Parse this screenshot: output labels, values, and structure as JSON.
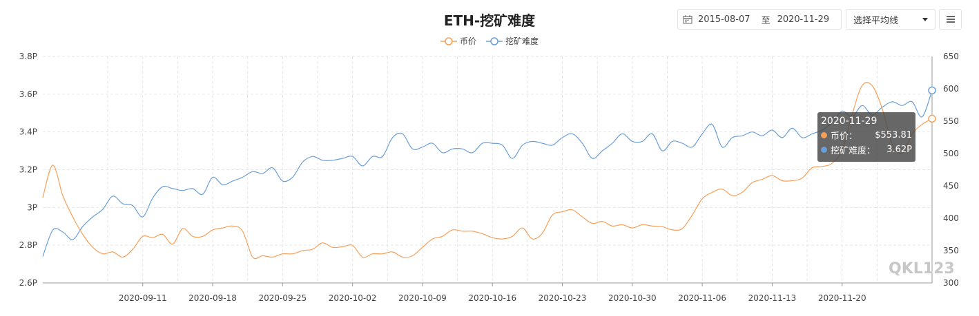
{
  "title": "ETH-挖矿难度",
  "legend": [
    {
      "label": "币价",
      "color": "#f5a05a"
    },
    {
      "label": "挖矿难度",
      "color": "#6a9fd8"
    }
  ],
  "toolbar": {
    "date_start": "2015-08-07",
    "date_sep": "至",
    "date_end": "2020-11-29",
    "ma_select": "选择平均线"
  },
  "tooltip": {
    "date": "2020-11-29",
    "rows": [
      {
        "name": "币价：",
        "value": "$553.81",
        "color": "#f5a05a"
      },
      {
        "name": "挖矿难度：",
        "value": "3.62P",
        "color": "#6a9fd8"
      }
    ]
  },
  "watermark": "QKL123",
  "chart_data": {
    "type": "line",
    "x_ticks": [
      "2020-09-11",
      "2020-09-18",
      "2020-09-25",
      "2020-10-02",
      "2020-10-09",
      "2020-10-16",
      "2020-10-23",
      "2020-10-30",
      "2020-11-06",
      "2020-11-13",
      "2020-11-20"
    ],
    "x_range": [
      "2020-09-01",
      "2020-11-29"
    ],
    "y_left": {
      "ticks": [
        "2.6P",
        "2.8P",
        "3P",
        "3.2P",
        "3.4P",
        "3.6P",
        "3.8P"
      ],
      "min": 2.6,
      "max": 3.8,
      "unit": "P"
    },
    "y_right": {
      "ticks": [
        "300",
        "350",
        "400",
        "450",
        "500",
        "550",
        "600",
        "650"
      ],
      "min": 300,
      "max": 650
    },
    "grid": true,
    "legend_position": "top-center",
    "series": [
      {
        "name": "挖矿难度",
        "axis": "left",
        "color": "#6a9fd8",
        "x": [
          "2020-09-01",
          "2020-09-02",
          "2020-09-03",
          "2020-09-04",
          "2020-09-05",
          "2020-09-06",
          "2020-09-07",
          "2020-09-08",
          "2020-09-09",
          "2020-09-10",
          "2020-09-11",
          "2020-09-12",
          "2020-09-13",
          "2020-09-14",
          "2020-09-15",
          "2020-09-16",
          "2020-09-17",
          "2020-09-18",
          "2020-09-19",
          "2020-09-20",
          "2020-09-21",
          "2020-09-22",
          "2020-09-23",
          "2020-09-24",
          "2020-09-25",
          "2020-09-26",
          "2020-09-27",
          "2020-09-28",
          "2020-09-29",
          "2020-09-30",
          "2020-10-01",
          "2020-10-02",
          "2020-10-03",
          "2020-10-04",
          "2020-10-05",
          "2020-10-06",
          "2020-10-07",
          "2020-10-08",
          "2020-10-09",
          "2020-10-10",
          "2020-10-11",
          "2020-10-12",
          "2020-10-13",
          "2020-10-14",
          "2020-10-15",
          "2020-10-16",
          "2020-10-17",
          "2020-10-18",
          "2020-10-19",
          "2020-10-20",
          "2020-10-21",
          "2020-10-22",
          "2020-10-23",
          "2020-10-24",
          "2020-10-25",
          "2020-10-26",
          "2020-10-27",
          "2020-10-28",
          "2020-10-29",
          "2020-10-30",
          "2020-10-31",
          "2020-11-01",
          "2020-11-02",
          "2020-11-03",
          "2020-11-04",
          "2020-11-05",
          "2020-11-06",
          "2020-11-07",
          "2020-11-08",
          "2020-11-09",
          "2020-11-10",
          "2020-11-11",
          "2020-11-12",
          "2020-11-13",
          "2020-11-14",
          "2020-11-15",
          "2020-11-16",
          "2020-11-17",
          "2020-11-18",
          "2020-11-19",
          "2020-11-20",
          "2020-11-21",
          "2020-11-22",
          "2020-11-23",
          "2020-11-24",
          "2020-11-25",
          "2020-11-26",
          "2020-11-27",
          "2020-11-28",
          "2020-11-29"
        ],
        "values": [
          2.74,
          2.88,
          2.87,
          2.83,
          2.9,
          2.95,
          2.99,
          3.06,
          3.02,
          3.01,
          2.95,
          3.05,
          3.11,
          3.1,
          3.09,
          3.1,
          3.07,
          3.16,
          3.12,
          3.14,
          3.16,
          3.19,
          3.18,
          3.21,
          3.14,
          3.16,
          3.24,
          3.27,
          3.25,
          3.25,
          3.26,
          3.27,
          3.22,
          3.27,
          3.27,
          3.37,
          3.39,
          3.31,
          3.32,
          3.34,
          3.29,
          3.31,
          3.31,
          3.29,
          3.34,
          3.34,
          3.33,
          3.26,
          3.33,
          3.35,
          3.34,
          3.33,
          3.37,
          3.39,
          3.34,
          3.26,
          3.3,
          3.34,
          3.39,
          3.35,
          3.35,
          3.39,
          3.3,
          3.35,
          3.34,
          3.32,
          3.39,
          3.44,
          3.32,
          3.37,
          3.38,
          3.4,
          3.38,
          3.41,
          3.37,
          3.42,
          3.37,
          3.39,
          3.41,
          3.45,
          3.51,
          3.48,
          3.54,
          3.49,
          3.53,
          3.56,
          3.54,
          3.56,
          3.48,
          3.62
        ]
      },
      {
        "name": "币价",
        "axis": "right",
        "color": "#f5a05a",
        "x": [
          "2020-09-01",
          "2020-09-02",
          "2020-09-03",
          "2020-09-04",
          "2020-09-05",
          "2020-09-06",
          "2020-09-07",
          "2020-09-08",
          "2020-09-09",
          "2020-09-10",
          "2020-09-11",
          "2020-09-12",
          "2020-09-13",
          "2020-09-14",
          "2020-09-15",
          "2020-09-16",
          "2020-09-17",
          "2020-09-18",
          "2020-09-19",
          "2020-09-20",
          "2020-09-21",
          "2020-09-22",
          "2020-09-23",
          "2020-09-24",
          "2020-09-25",
          "2020-09-26",
          "2020-09-27",
          "2020-09-28",
          "2020-09-29",
          "2020-09-30",
          "2020-10-01",
          "2020-10-02",
          "2020-10-03",
          "2020-10-04",
          "2020-10-05",
          "2020-10-06",
          "2020-10-07",
          "2020-10-08",
          "2020-10-09",
          "2020-10-10",
          "2020-10-11",
          "2020-10-12",
          "2020-10-13",
          "2020-10-14",
          "2020-10-15",
          "2020-10-16",
          "2020-10-17",
          "2020-10-18",
          "2020-10-19",
          "2020-10-20",
          "2020-10-21",
          "2020-10-22",
          "2020-10-23",
          "2020-10-24",
          "2020-10-25",
          "2020-10-26",
          "2020-10-27",
          "2020-10-28",
          "2020-10-29",
          "2020-10-30",
          "2020-10-31",
          "2020-11-01",
          "2020-11-02",
          "2020-11-03",
          "2020-11-04",
          "2020-11-05",
          "2020-11-06",
          "2020-11-07",
          "2020-11-08",
          "2020-11-09",
          "2020-11-10",
          "2020-11-11",
          "2020-11-12",
          "2020-11-13",
          "2020-11-14",
          "2020-11-15",
          "2020-11-16",
          "2020-11-17",
          "2020-11-18",
          "2020-11-19",
          "2020-11-20",
          "2020-11-21",
          "2020-11-22",
          "2020-11-23",
          "2020-11-24",
          "2020-11-25",
          "2020-11-26",
          "2020-11-27",
          "2020-11-28",
          "2020-11-29"
        ],
        "values": [
          432,
          482,
          435,
          402,
          375,
          355,
          345,
          348,
          340,
          352,
          372,
          370,
          375,
          360,
          384,
          372,
          372,
          382,
          385,
          388,
          380,
          340,
          342,
          340,
          345,
          345,
          350,
          352,
          362,
          355,
          356,
          358,
          340,
          345,
          345,
          348,
          340,
          342,
          355,
          368,
          372,
          382,
          380,
          380,
          376,
          370,
          368,
          372,
          385,
          368,
          377,
          405,
          410,
          413,
          402,
          392,
          395,
          388,
          390,
          385,
          390,
          388,
          387,
          382,
          384,
          405,
          430,
          440,
          445,
          435,
          440,
          455,
          460,
          466,
          458,
          458,
          462,
          478,
          480,
          485,
          506,
          560,
          605,
          605,
          570,
          515,
          500,
          530,
          545,
          553.81
        ]
      }
    ]
  }
}
